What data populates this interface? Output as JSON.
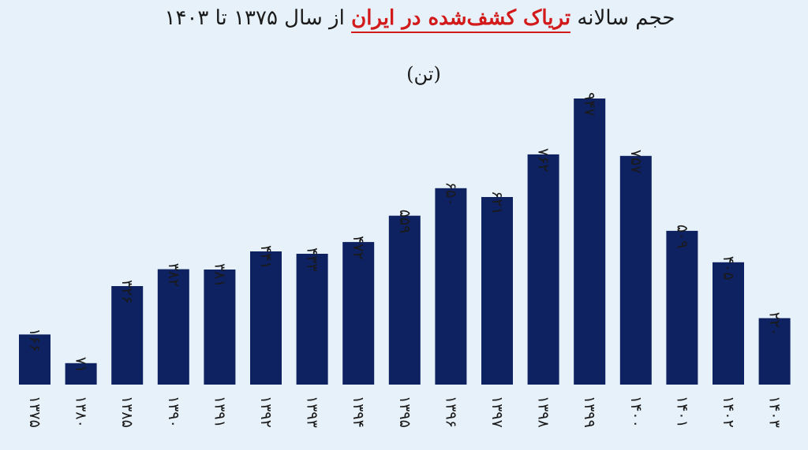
{
  "title": {
    "part1": "حجم سالانه",
    "highlight": "تریاک کشف‌شده در ایران",
    "part2": "از سال ۱۳۷۵ تا ۱۴۰۳"
  },
  "unit": "(تن)",
  "colors": {
    "bar": "#0e2160",
    "highlight": "#d21a1a",
    "background": "#e7f1f9"
  },
  "chart_data": {
    "type": "bar",
    "categories": [
      "۱۳۷۵",
      "۱۳۸۰",
      "۱۳۸۵",
      "۱۳۹۰",
      "۱۳۹۱",
      "۱۳۹۲",
      "۱۳۹۳",
      "۱۳۹۴",
      "۱۳۹۵",
      "۱۳۹۶",
      "۱۳۹۷",
      "۱۳۹۸",
      "۱۳۹۹",
      "۱۴۰۰",
      "۱۴۰۱",
      "۱۴۰۲",
      "۱۴۰۳"
    ],
    "values": [
      166,
      71,
      326,
      382,
      381,
      441,
      433,
      472,
      559,
      650,
      621,
      762,
      947,
      757,
      509,
      405,
      220
    ],
    "value_labels": [
      "۱۶۶",
      "۷۱",
      "۳۲۶",
      "۳۸۲",
      "۳۸۱",
      "۴۴۱",
      "۴۳۳",
      "۴۷۲",
      "۵۵۹",
      "۶۵۰",
      "۶۲۱",
      "۷۶۲",
      "۹۴۷",
      "۷۵۷",
      "۵۰۹",
      "۴۰۵",
      "۲۲۰"
    ],
    "ylim": [
      0,
      1000
    ],
    "grid": false,
    "legend": "none"
  }
}
